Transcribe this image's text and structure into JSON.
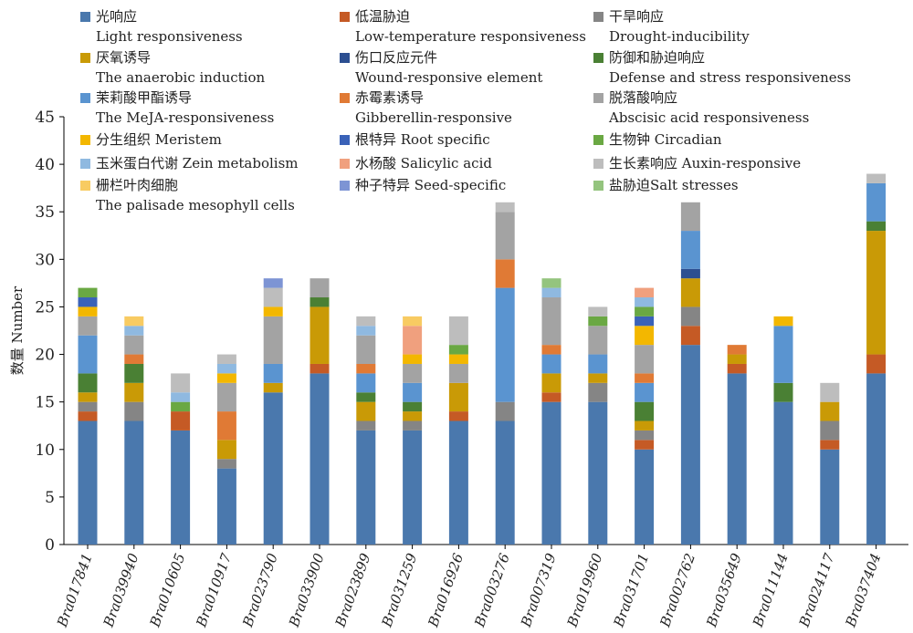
{
  "chart_data": {
    "type": "bar",
    "stacked": true,
    "ylabel": "数量 Number",
    "ylim": [
      0,
      45
    ],
    "yticks": [
      0,
      5,
      10,
      15,
      20,
      25,
      30,
      35,
      40,
      45
    ],
    "grid": false,
    "legend_position": "top",
    "categories": [
      "Bra017841",
      "Bra039940",
      "Bra010605",
      "Bra010917",
      "Bra023790",
      "Bra033900",
      "Bra023899",
      "Bra031259",
      "Bra016926",
      "Bra003276",
      "Bra007319",
      "Bra019960",
      "Bra031701",
      "Bra002762",
      "Bra035649",
      "Bra011144",
      "Bra024117",
      "Bra037404"
    ],
    "series": [
      {
        "name_zh": "光响应",
        "name_en": "Light responsiveness",
        "color": "#4a78ad",
        "values": [
          13,
          13,
          12,
          8,
          16,
          18,
          12,
          12,
          13,
          13,
          15,
          15,
          10,
          21,
          18,
          15,
          10,
          18
        ]
      },
      {
        "name_zh": "低温胁迫",
        "name_en": "Low-temperature responsiveness",
        "color": "#c55a25",
        "values": [
          1,
          0,
          2,
          0,
          0,
          1,
          0,
          0,
          1,
          0,
          1,
          0,
          1,
          2,
          1,
          0,
          1,
          2
        ]
      },
      {
        "name_zh": "干旱响应",
        "name_en": "Drought-inducibility",
        "color": "#858585",
        "values": [
          1,
          2,
          0,
          1,
          0,
          0,
          1,
          1,
          0,
          2,
          0,
          2,
          1,
          2,
          0,
          0,
          2,
          0
        ]
      },
      {
        "name_zh": "厌氧诱导",
        "name_en": "The anaerobic induction",
        "color": "#c99a06",
        "values": [
          1,
          2,
          0,
          2,
          1,
          6,
          2,
          1,
          3,
          0,
          2,
          1,
          1,
          3,
          1,
          0,
          2,
          13
        ]
      },
      {
        "name_zh": "伤口反应元件",
        "name_en": "Wound-responsive element",
        "color": "#2c4f91",
        "values": [
          0,
          0,
          0,
          0,
          0,
          0,
          0,
          0,
          0,
          0,
          0,
          0,
          0,
          1,
          0,
          0,
          0,
          0
        ]
      },
      {
        "name_zh": "防御和胁迫响应",
        "name_en": "Defense and stress responsiveness",
        "color": "#4a8034",
        "values": [
          2,
          2,
          0,
          0,
          0,
          1,
          1,
          1,
          0,
          0,
          0,
          0,
          2,
          0,
          0,
          2,
          0,
          1
        ]
      },
      {
        "name_zh": "茉莉酸甲酯诱导",
        "name_en": "The MeJA-responsiveness",
        "color": "#5a94d0",
        "values": [
          4,
          0,
          0,
          0,
          2,
          0,
          2,
          2,
          0,
          12,
          2,
          2,
          2,
          4,
          0,
          6,
          0,
          4
        ]
      },
      {
        "name_zh": "赤霉素诱导",
        "name_en": "Gibberellin-responsive",
        "color": "#e07a35",
        "values": [
          0,
          1,
          0,
          3,
          0,
          0,
          1,
          0,
          0,
          3,
          1,
          0,
          1,
          0,
          1,
          0,
          0,
          0
        ]
      },
      {
        "name_zh": "脱落酸响应",
        "name_en": "Abscisic acid responsiveness",
        "color": "#a3a3a3",
        "values": [
          2,
          2,
          0,
          3,
          5,
          2,
          3,
          2,
          2,
          5,
          5,
          3,
          3,
          3,
          0,
          0,
          0,
          0
        ]
      },
      {
        "name_zh": "分生组织",
        "name_en": "Meristem",
        "color": "#f3b700",
        "values": [
          1,
          0,
          0,
          1,
          1,
          0,
          0,
          1,
          1,
          0,
          0,
          0,
          2,
          0,
          0,
          1,
          0,
          0
        ]
      },
      {
        "name_zh": "根特异",
        "name_en": "Root specific",
        "color": "#3a62b8",
        "values": [
          1,
          0,
          0,
          0,
          0,
          0,
          0,
          0,
          0,
          0,
          0,
          0,
          1,
          0,
          0,
          0,
          0,
          0
        ]
      },
      {
        "name_zh": "生物钟",
        "name_en": "Circadian",
        "color": "#6aa843",
        "values": [
          1,
          0,
          1,
          0,
          0,
          0,
          0,
          0,
          1,
          0,
          0,
          1,
          1,
          0,
          0,
          0,
          0,
          0
        ]
      },
      {
        "name_zh": "玉米蛋白代谢",
        "name_en": "Zein metabolism",
        "color": "#8fb9e0",
        "values": [
          0,
          1,
          1,
          1,
          0,
          0,
          1,
          0,
          0,
          0,
          1,
          0,
          1,
          0,
          0,
          0,
          0,
          0
        ]
      },
      {
        "name_zh": "水杨酸",
        "name_en": "Salicylic acid",
        "color": "#f0a07e",
        "values": [
          0,
          0,
          0,
          0,
          0,
          0,
          0,
          3,
          0,
          0,
          0,
          0,
          1,
          0,
          0,
          0,
          0,
          0
        ]
      },
      {
        "name_zh": "生长素响应",
        "name_en": "Auxin-responsive",
        "color": "#bdbdbd",
        "values": [
          0,
          0,
          2,
          1,
          2,
          0,
          1,
          0,
          3,
          1,
          0,
          1,
          0,
          0,
          0,
          0,
          2,
          1
        ]
      },
      {
        "name_zh": "栅栏叶肉细胞",
        "name_en": "The palisade mesophyll cells",
        "color": "#f8cb62",
        "values": [
          0,
          1,
          0,
          0,
          0,
          0,
          0,
          1,
          0,
          0,
          0,
          0,
          0,
          0,
          0,
          0,
          0,
          0
        ]
      },
      {
        "name_zh": "种子特异",
        "name_en": "Seed-specific",
        "color": "#7d94d4",
        "values": [
          0,
          0,
          0,
          0,
          1,
          0,
          0,
          0,
          0,
          0,
          0,
          0,
          0,
          0,
          0,
          0,
          0,
          0
        ]
      },
      {
        "name_zh": "盐胁迫",
        "name_en": "Salt stresses",
        "color": "#94c47e",
        "values": [
          0,
          0,
          0,
          0,
          0,
          0,
          0,
          0,
          0,
          0,
          1,
          0,
          0,
          0,
          0,
          0,
          0,
          0
        ]
      }
    ]
  },
  "legend": [
    {
      "zh": "光响应",
      "en": "Light responsiveness",
      "inline": false,
      "color": "#4a78ad"
    },
    {
      "zh": "低温胁迫",
      "en": "Low-temperature responsiveness",
      "inline": false,
      "color": "#c55a25"
    },
    {
      "zh": "干旱响应",
      "en": "Drought-inducibility",
      "inline": false,
      "color": "#858585"
    },
    {
      "zh": "厌氧诱导",
      "en": "The anaerobic induction",
      "inline": false,
      "color": "#c99a06"
    },
    {
      "zh": "伤口反应元件",
      "en": "Wound-responsive element",
      "inline": false,
      "color": "#2c4f91"
    },
    {
      "zh": "防御和胁迫响应",
      "en": "Defense and stress responsiveness",
      "inline": false,
      "color": "#4a8034"
    },
    {
      "zh": "茉莉酸甲酯诱导",
      "en": "The MeJA-responsiveness",
      "inline": false,
      "color": "#5a94d0"
    },
    {
      "zh": "赤霉素诱导",
      "en": "Gibberellin-responsive",
      "inline": false,
      "color": "#e07a35"
    },
    {
      "zh": "脱落酸响应",
      "en": "Abscisic acid responsiveness",
      "inline": false,
      "color": "#a3a3a3"
    },
    {
      "zh": "分生组织 Meristem",
      "en": "",
      "inline": true,
      "color": "#f3b700"
    },
    {
      "zh": "根特异 Root specific",
      "en": "",
      "inline": true,
      "color": "#3a62b8"
    },
    {
      "zh": "生物钟 Circadian",
      "en": "",
      "inline": true,
      "color": "#6aa843"
    },
    {
      "zh": "玉米蛋白代谢 Zein metabolism",
      "en": "",
      "inline": true,
      "color": "#8fb9e0"
    },
    {
      "zh": "水杨酸 Salicylic acid",
      "en": "",
      "inline": true,
      "color": "#f0a07e"
    },
    {
      "zh": "生长素响应 Auxin-responsive",
      "en": "",
      "inline": true,
      "color": "#bdbdbd"
    },
    {
      "zh": "栅栏叶肉细胞",
      "en": "The palisade mesophyll cells",
      "inline": false,
      "color": "#f8cb62"
    },
    {
      "zh": "种子特异 Seed-specific",
      "en": "",
      "inline": true,
      "color": "#7d94d4"
    },
    {
      "zh": "盐胁迫Salt stresses",
      "en": "",
      "inline": true,
      "color": "#94c47e"
    }
  ]
}
